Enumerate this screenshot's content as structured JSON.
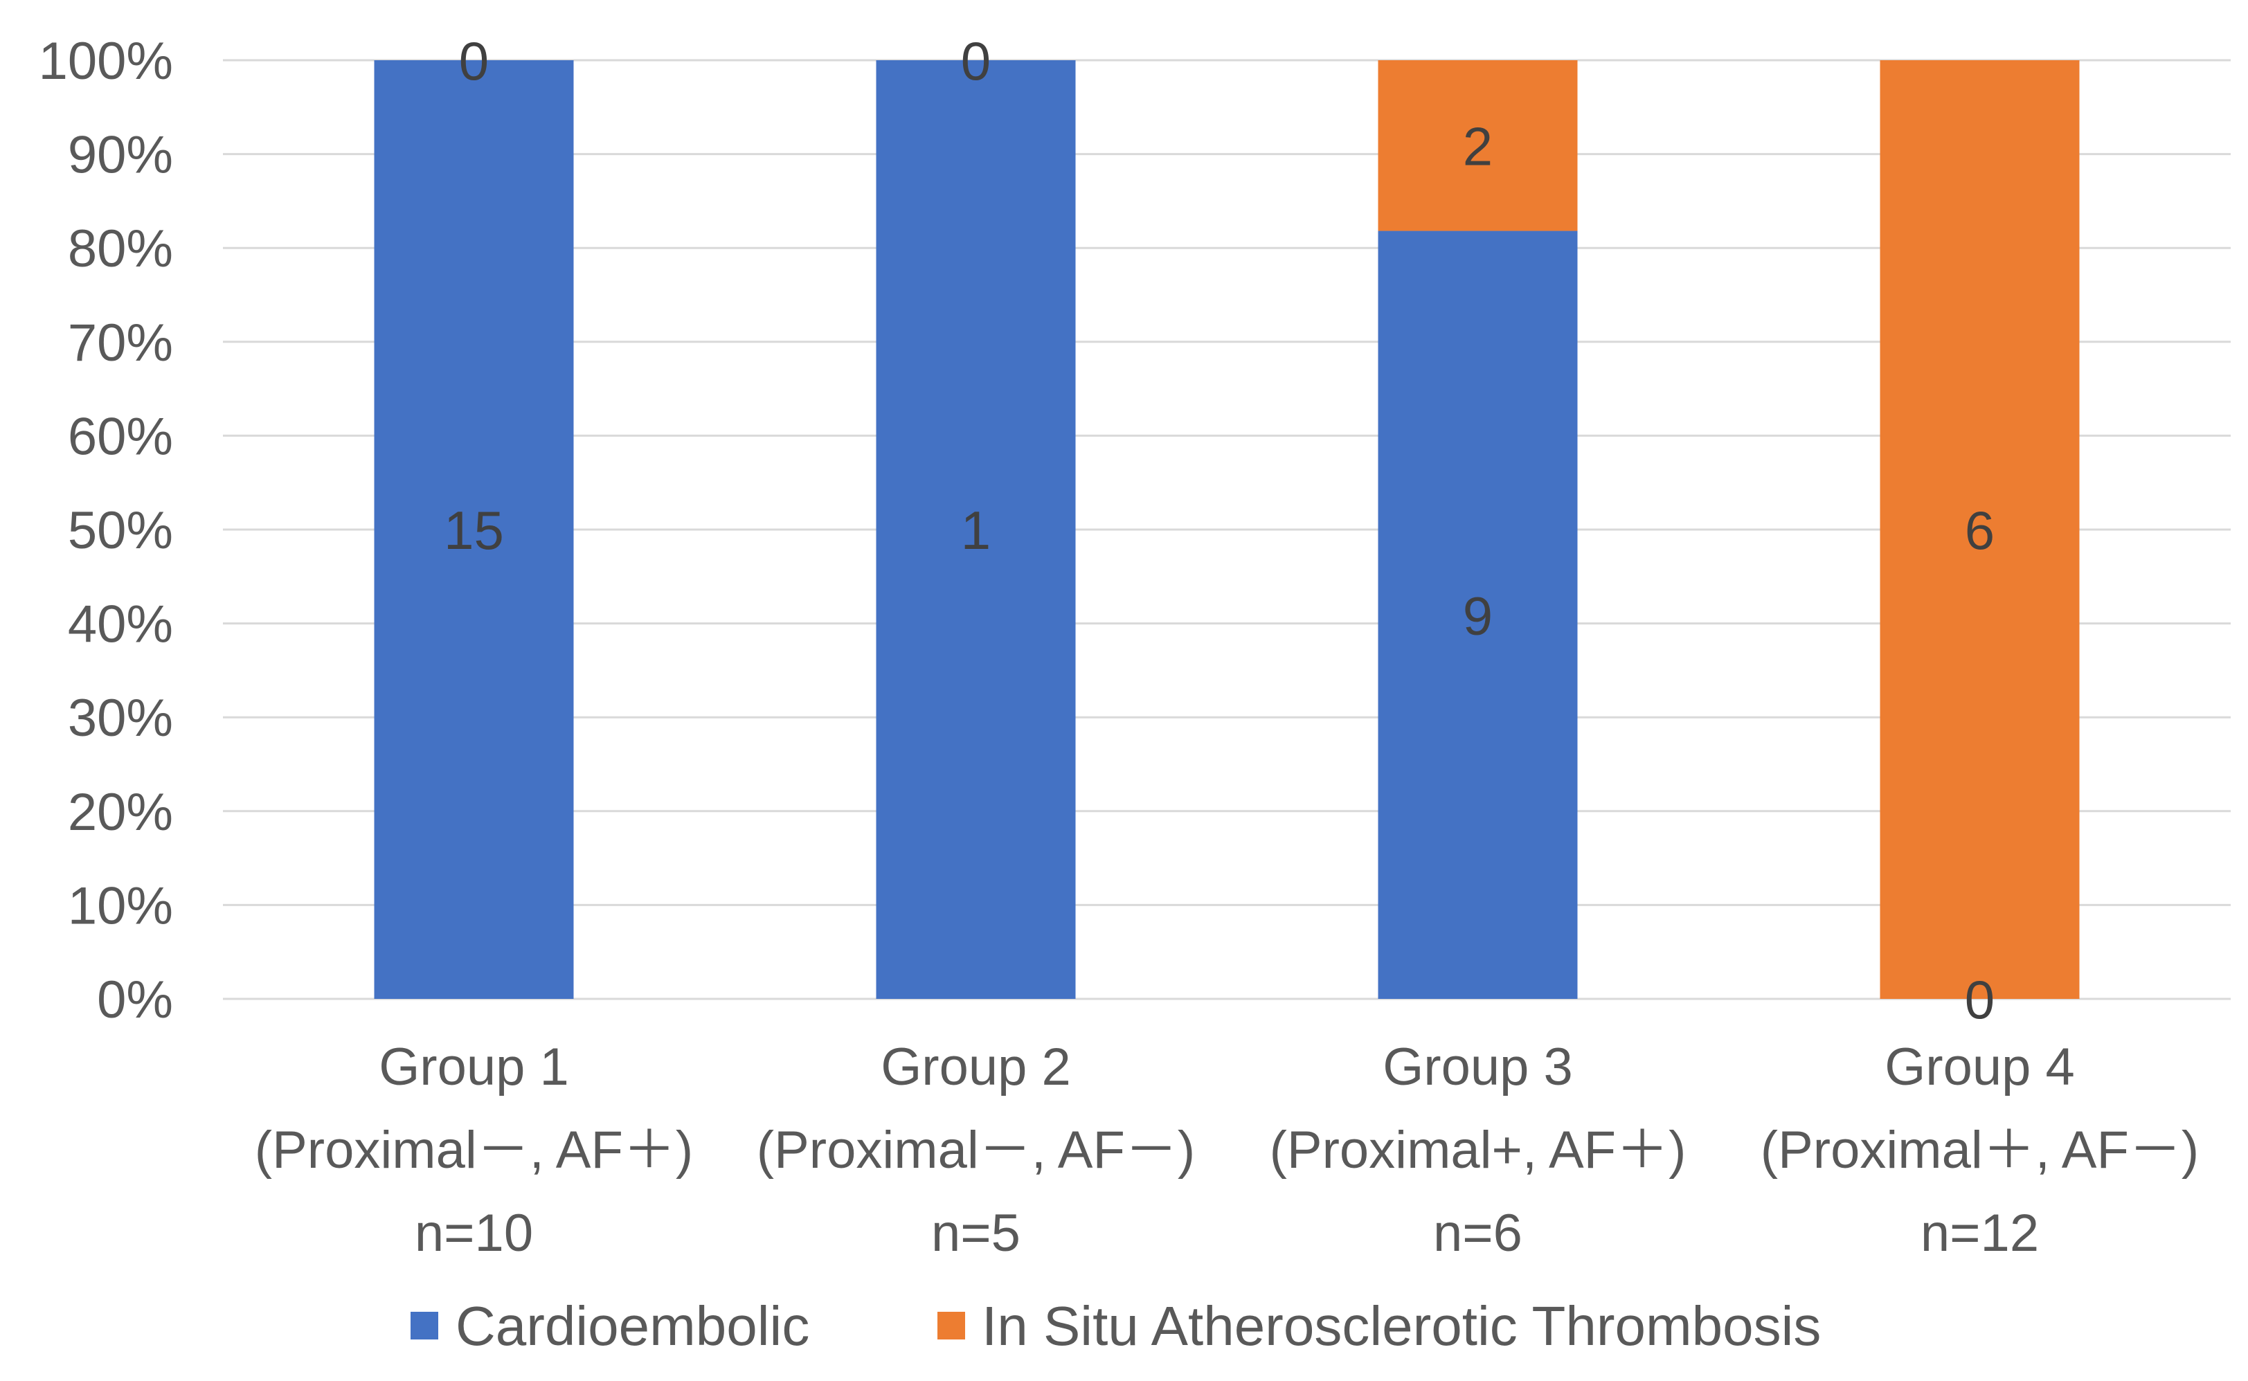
{
  "chart_data": {
    "type": "bar",
    "stacked": "percent",
    "categories": [
      {
        "lines": [
          "Group 1",
          "(Proximal－, AF＋)",
          "n=10"
        ]
      },
      {
        "lines": [
          "Group 2",
          "(Proximal－, AF－)",
          "n=5"
        ]
      },
      {
        "lines": [
          "Group 3",
          "(Proximal+, AF＋)",
          "n=6"
        ]
      },
      {
        "lines": [
          "Group 4",
          "(Proximal＋, AF－)",
          "n=12"
        ]
      }
    ],
    "series": [
      {
        "name": "Cardioembolic",
        "color": "#4472c4",
        "values": [
          15,
          1,
          9,
          0
        ],
        "labels": [
          "15",
          "1",
          "9",
          "0"
        ]
      },
      {
        "name": "In Situ Atherosclerotic Thrombosis",
        "color": "#ed7d31",
        "values": [
          0,
          0,
          2,
          6
        ],
        "labels": [
          "0",
          "0",
          "2",
          "6"
        ]
      }
    ],
    "yticks": [
      "0%",
      "10%",
      "20%",
      "30%",
      "40%",
      "50%",
      "60%",
      "70%",
      "80%",
      "90%",
      "100%"
    ],
    "ylim": [
      0,
      100
    ],
    "grid": true,
    "legend_position": "bottom"
  }
}
